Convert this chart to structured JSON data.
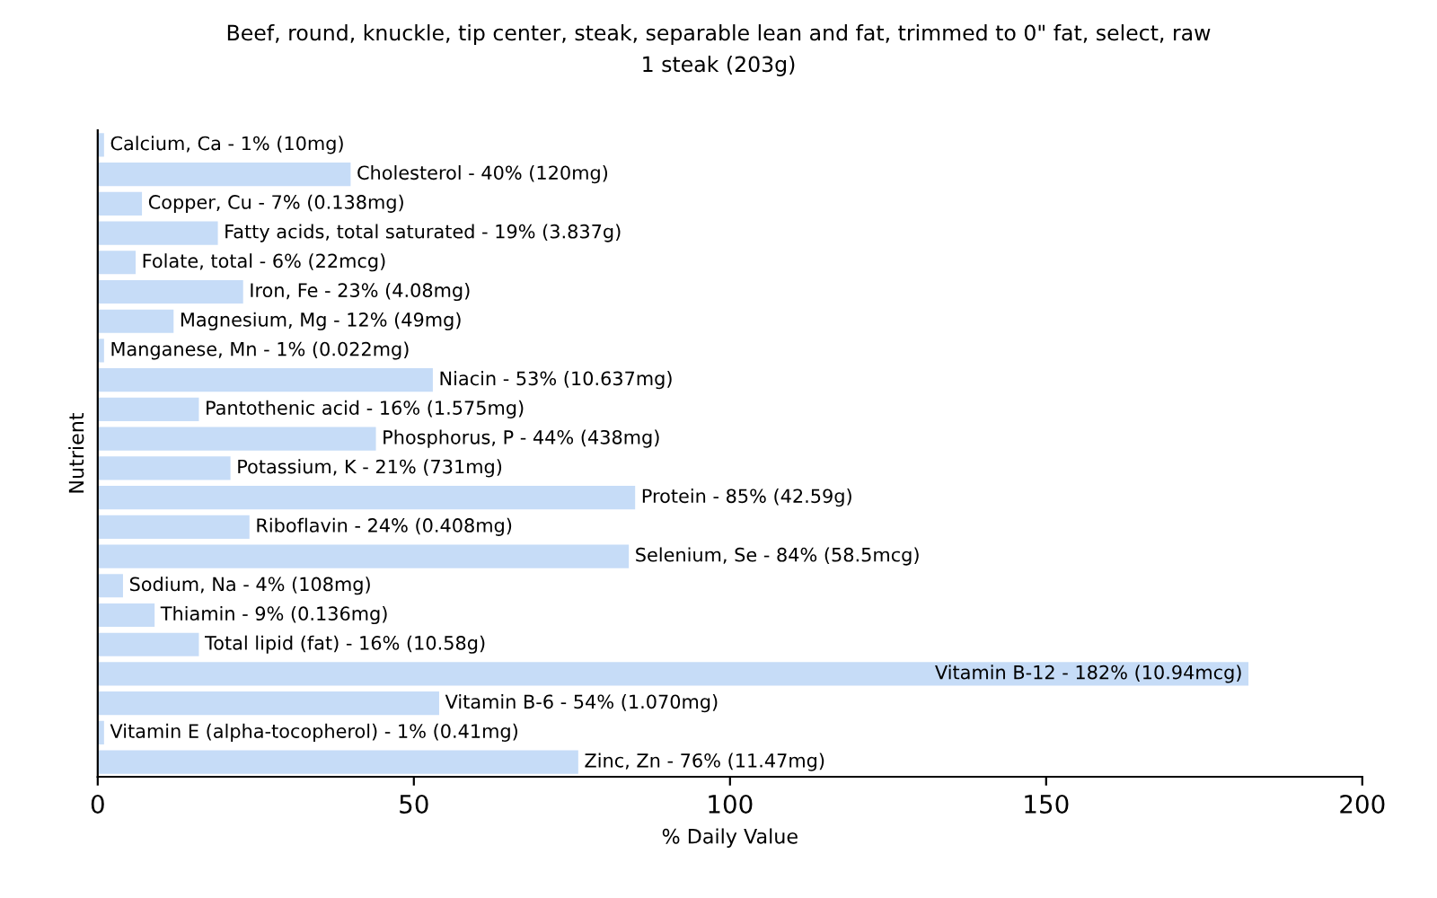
{
  "chart_data": {
    "type": "bar",
    "orientation": "horizontal",
    "title": "Beef, round, knuckle, tip center, steak, separable lean and fat, trimmed to 0\" fat, select, raw",
    "subtitle": "1 steak (203g)",
    "xlabel": "% Daily Value",
    "ylabel": "Nutrient",
    "categories": [
      null,
      null,
      null,
      null,
      null,
      null,
      null,
      null,
      null,
      null,
      null,
      null,
      null,
      null,
      null,
      null,
      null,
      null,
      null,
      null,
      null,
      null
    ],
    "values": [
      1,
      40,
      7,
      19,
      6,
      23,
      12,
      1,
      53,
      16,
      44,
      21,
      85,
      24,
      84,
      4,
      9,
      16,
      182,
      54,
      1,
      76
    ],
    "annotations": [
      {
        "text": "Calcium, Ca - 1% (10mg)",
        "x": 1
      },
      {
        "text": "Cholesterol - 40% (120mg)",
        "x": 40
      },
      {
        "text": "Copper, Cu - 7% (0.138mg)",
        "x": 7
      },
      {
        "text": "Fatty acids, total saturated - 19% (3.837g)",
        "x": 19
      },
      {
        "text": "Folate, total - 6% (22mcg)",
        "x": 6
      },
      {
        "text": "Iron, Fe - 23% (4.08mg)",
        "x": 23
      },
      {
        "text": "Magnesium, Mg - 12% (49mg)",
        "x": 12
      },
      {
        "text": "Manganese, Mn - 1% (0.022mg)",
        "x": 1
      },
      {
        "text": "Niacin - 53% (10.637mg)",
        "x": 53
      },
      {
        "text": "Pantothenic acid - 16% (1.575mg)",
        "x": 16
      },
      {
        "text": "Phosphorus, P - 44% (438mg)",
        "x": 44
      },
      {
        "text": "Potassium, K - 21% (731mg)",
        "x": 21
      },
      {
        "text": "Protein - 85% (42.59g)",
        "x": 85
      },
      {
        "text": "Riboflavin - 24% (0.408mg)",
        "x": 24
      },
      {
        "text": "Selenium, Se - 84% (58.5mcg)",
        "x": 84
      },
      {
        "text": "Sodium, Na - 4% (108mg)",
        "x": 4
      },
      {
        "text": "Thiamin - 9% (0.136mg)",
        "x": 9
      },
      {
        "text": "Total lipid (fat) - 16% (10.58g)",
        "x": 16
      },
      {
        "text": "Vitamin B-12 - 182% (10.94mcg)",
        "x": 182
      },
      {
        "text": "Vitamin B-6 - 54% (1.070mg)",
        "x": 54
      },
      {
        "text": "Vitamin E (alpha-tocopherol) - 1% (0.41mg)",
        "x": 1
      },
      {
        "text": "Zinc, Zn - 76% (11.47mg)",
        "x": 76
      }
    ],
    "color": "#c6dcf7",
    "xlim": [
      0,
      200
    ],
    "xticks": [
      0,
      50,
      100,
      150,
      200
    ],
    "tick_labels": "x",
    "grid": false,
    "legend": false
  }
}
